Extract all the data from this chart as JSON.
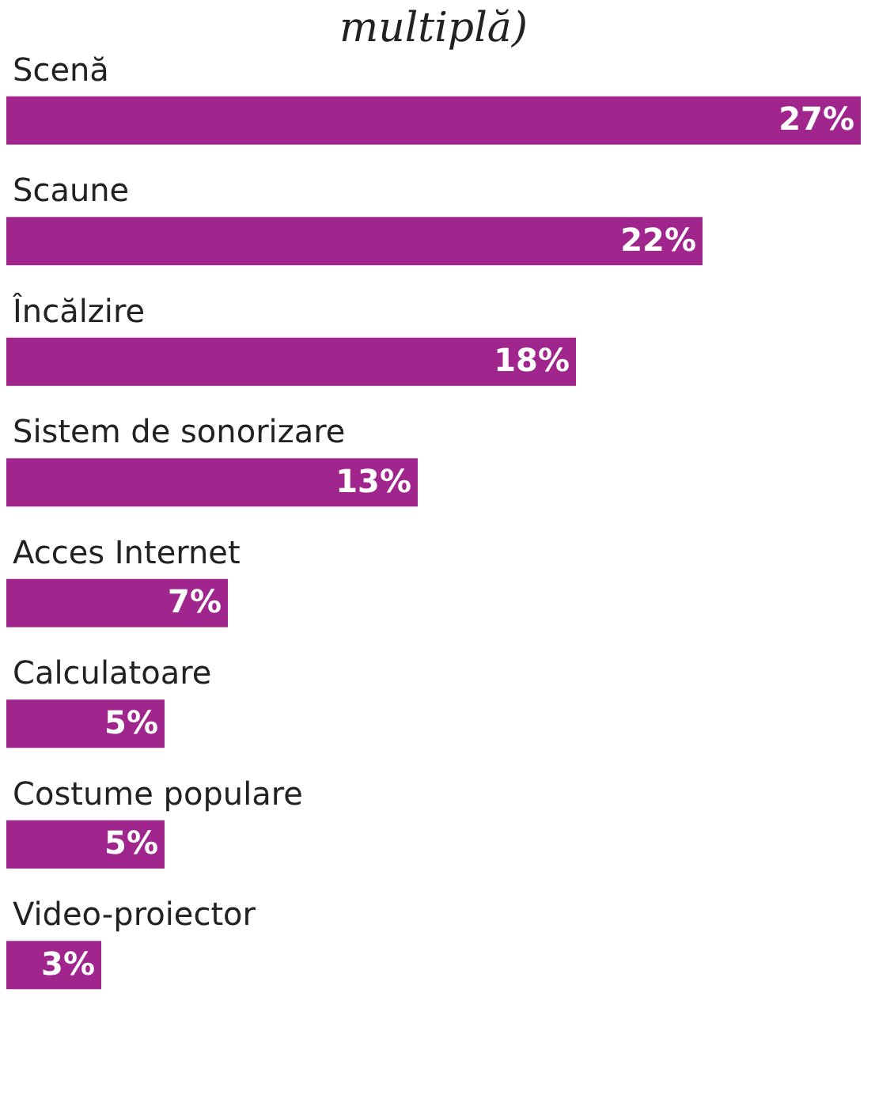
{
  "chart_data": {
    "type": "bar",
    "orientation": "horizontal",
    "title": "multiplă)",
    "categories": [
      "Scenă",
      "Scaune",
      "Încălzire",
      "Sistem de sonorizare",
      "Acces Internet",
      "Calculatoare",
      "Costume populare",
      "Video-proiector"
    ],
    "values": [
      27,
      22,
      18,
      13,
      7,
      5,
      5,
      3
    ],
    "value_labels": [
      "27%",
      "22%",
      "18%",
      "13%",
      "7%",
      "5%",
      "5%",
      "3%"
    ],
    "color": "#a0268d",
    "grid": false,
    "tick_labels": "y"
  }
}
